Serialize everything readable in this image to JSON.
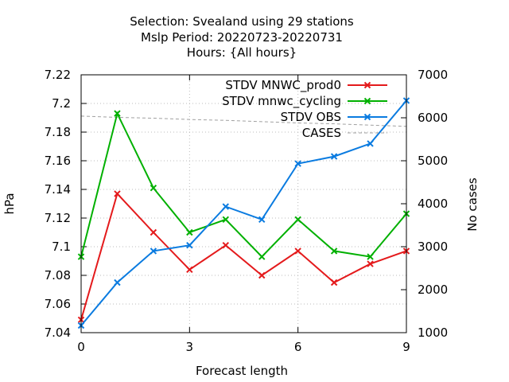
{
  "chart_data": {
    "type": "line",
    "title_lines": [
      "Selection: Svealand using    29 stations",
      "Mslp   Period: 20220723-20220731",
      "Hours: {All hours}"
    ],
    "xlabel": "Forecast length",
    "ylabel": "hPa",
    "y2label": "No cases",
    "xlim": [
      0,
      9
    ],
    "ylim": [
      7.04,
      7.22
    ],
    "y2lim": [
      1000,
      7000
    ],
    "x_ticks": [
      "0",
      "3",
      "6",
      "9"
    ],
    "y_ticks": [
      "7.04",
      "7.06",
      "7.08",
      "7.1",
      "7.12",
      "7.14",
      "7.16",
      "7.18",
      "7.2",
      "7.22"
    ],
    "y2_ticks": [
      "1000",
      "2000",
      "3000",
      "4000",
      "5000",
      "6000",
      "7000"
    ],
    "grid": true,
    "legend_position": "top-right",
    "x": [
      0,
      1,
      2,
      3,
      4,
      5,
      6,
      7,
      8,
      9
    ],
    "series": [
      {
        "name": "STDV MNWC_prod0",
        "axis": "left",
        "color": "#e41a1c",
        "marker": "x",
        "values": [
          7.049,
          7.137,
          7.11,
          7.084,
          7.101,
          7.08,
          7.097,
          7.075,
          7.088,
          7.097
        ]
      },
      {
        "name": "STDV mnwc_cycling",
        "axis": "left",
        "color": "#00b000",
        "marker": "x",
        "values": [
          7.093,
          7.193,
          7.141,
          7.11,
          7.119,
          7.093,
          7.119,
          7.097,
          7.093,
          7.123
        ]
      },
      {
        "name": "STDV OBS",
        "axis": "left",
        "color": "#0a7be0",
        "marker": "x",
        "values": [
          7.045,
          7.075,
          7.097,
          7.101,
          7.128,
          7.119,
          7.158,
          7.163,
          7.172,
          7.202
        ]
      },
      {
        "name": "CASES",
        "axis": "right",
        "color": "#a0a0a0",
        "marker": "none",
        "dashed": true,
        "values": [
          6040,
          6010,
          5990,
          5960,
          5940,
          5910,
          5880,
          5860,
          5830,
          5800
        ]
      }
    ]
  }
}
